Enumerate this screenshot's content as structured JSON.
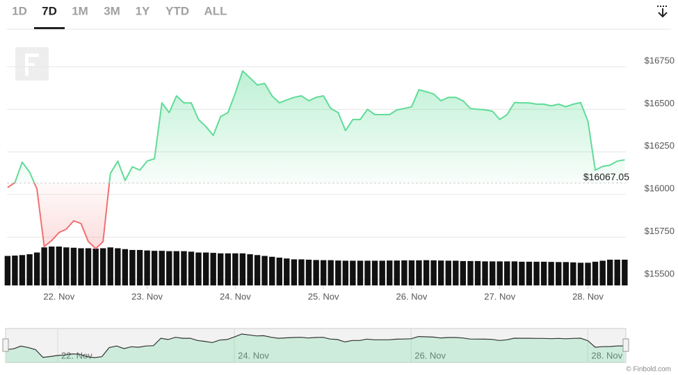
{
  "range_buttons": [
    "1D",
    "7D",
    "1M",
    "3M",
    "1Y",
    "YTD",
    "ALL"
  ],
  "selected_range": "7D",
  "credit": "© Finbold.com",
  "chart_data": {
    "type": "line",
    "x": [
      21.417,
      21.5,
      21.583,
      21.667,
      21.75,
      21.833,
      21.917,
      22,
      22.083,
      22.167,
      22.25,
      22.333,
      22.417,
      22.5,
      22.583,
      22.667,
      22.75,
      22.833,
      22.917,
      23,
      23.083,
      23.167,
      23.25,
      23.333,
      23.417,
      23.5,
      23.583,
      23.667,
      23.75,
      23.833,
      23.917,
      24,
      24.083,
      24.167,
      24.25,
      24.333,
      24.417,
      24.5,
      24.583,
      24.667,
      24.75,
      24.833,
      24.917,
      25,
      25.083,
      25.167,
      25.25,
      25.333,
      25.417,
      25.5,
      25.583,
      25.667,
      25.75,
      25.833,
      25.917,
      26,
      26.083,
      26.167,
      26.25,
      26.333,
      26.417,
      26.5,
      26.583,
      26.667,
      26.75,
      26.833,
      26.917,
      27,
      27.083,
      27.167,
      27.25,
      27.333,
      27.417,
      27.5,
      27.583,
      27.667,
      27.75,
      27.833,
      27.917,
      28,
      28.083,
      28.167,
      28.25,
      28.333,
      28.417
    ],
    "series": [
      {
        "color": "#5fdc97",
        "negative_color": "#f07070",
        "values": [
          16041,
          16070,
          16190,
          16131,
          16033,
          15695,
          15730,
          15777,
          15797,
          15846,
          15830,
          15724,
          15683,
          15724,
          16123,
          16196,
          16082,
          16163,
          16143,
          16196,
          16210,
          16538,
          16481,
          16579,
          16538,
          16538,
          16440,
          16399,
          16347,
          16457,
          16481,
          16595,
          16725,
          16684,
          16643,
          16652,
          16579,
          16538,
          16555,
          16570,
          16579,
          16550,
          16570,
          16579,
          16505,
          16481,
          16375,
          16440,
          16440,
          16500,
          16469,
          16469,
          16469,
          16497,
          16505,
          16515,
          16615,
          16603,
          16590,
          16550,
          16570,
          16570,
          16550,
          16505,
          16500,
          16497,
          16489,
          16440,
          16469,
          16540,
          16538,
          16538,
          16530,
          16530,
          16520,
          16530,
          16515,
          16530,
          16540,
          16430,
          16143,
          16165,
          16172,
          16196,
          16204
        ]
      },
      {
        "type": "bar",
        "color": "#111111",
        "values": [
          15640,
          15642,
          15645,
          15650,
          15660,
          15690,
          15695,
          15695,
          15690,
          15688,
          15685,
          15685,
          15683,
          15685,
          15690,
          15685,
          15680,
          15675,
          15675,
          15672,
          15670,
          15670,
          15668,
          15668,
          15668,
          15665,
          15660,
          15660,
          15658,
          15655,
          15655,
          15655,
          15655,
          15650,
          15645,
          15640,
          15635,
          15630,
          15625,
          15620,
          15620,
          15618,
          15616,
          15615,
          15615,
          15613,
          15612,
          15612,
          15612,
          15612,
          15612,
          15612,
          15613,
          15613,
          15614,
          15614,
          15614,
          15615,
          15614,
          15613,
          15612,
          15612,
          15610,
          15610,
          15610,
          15608,
          15608,
          15608,
          15608,
          15608,
          15606,
          15606,
          15606,
          15606,
          15605,
          15604,
          15604,
          15602,
          15600,
          15600,
          15606,
          15612,
          15618,
          15618,
          15618
        ]
      }
    ],
    "threshold": {
      "value": 16067.05,
      "label": "$16067.05"
    },
    "xlim": [
      21.41,
      28.43
    ],
    "xticks": [
      {
        "value": 22,
        "label": "22. Nov"
      },
      {
        "value": 23,
        "label": "23. Nov"
      },
      {
        "value": 24,
        "label": "24. Nov"
      },
      {
        "value": 25,
        "label": "25. Nov"
      },
      {
        "value": 26,
        "label": "26. Nov"
      },
      {
        "value": 27,
        "label": "27. Nov"
      },
      {
        "value": 28,
        "label": "28. Nov"
      }
    ],
    "ylim": [
      15467,
      16970
    ],
    "yticks": [
      {
        "value": 15500,
        "label": "$15500"
      },
      {
        "value": 15750,
        "label": "$15750"
      },
      {
        "value": 16000,
        "label": "$16000"
      },
      {
        "value": 16250,
        "label": "$16250"
      },
      {
        "value": 16500,
        "label": "$16500"
      },
      {
        "value": 16750,
        "label": "$16750"
      }
    ],
    "grid": true,
    "navigator": {
      "xticks": [
        {
          "value": 22,
          "label": "22. Nov"
        },
        {
          "value": 24,
          "label": "24. Nov"
        },
        {
          "value": 26,
          "label": "26. Nov"
        },
        {
          "value": 28,
          "label": "28. Nov"
        }
      ]
    }
  }
}
